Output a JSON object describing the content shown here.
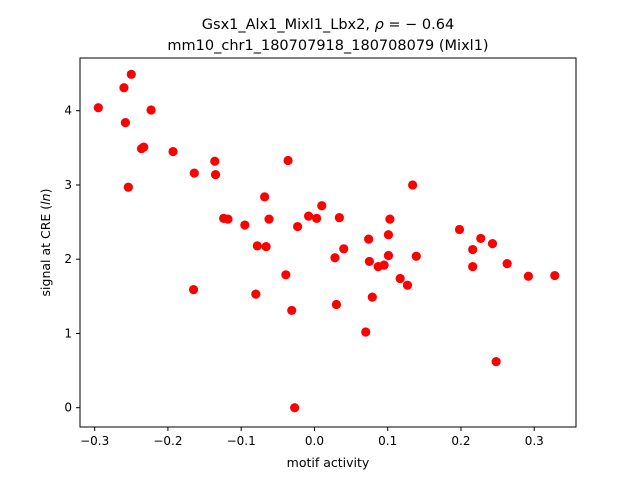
{
  "chart_data": {
    "type": "scatter",
    "title_line1_prefix": "Gsx1_Alx1_Mixl1_Lbx2, ",
    "title_line1_rho": "ρ",
    "title_line1_suffix": " = − 0.64",
    "title_line2": "mm10_chr1_180707918_180708079 (Mixl1)",
    "xlabel": "motif activity",
    "ylabel_prefix": "signal at CRE (",
    "ylabel_italic": "ln",
    "ylabel_suffix": ")",
    "xlim": [
      -0.32,
      0.357
    ],
    "ylim": [
      -0.26,
      4.71
    ],
    "xticks": [
      -0.3,
      -0.2,
      -0.1,
      0.0,
      0.1,
      0.2,
      0.3
    ],
    "xtick_labels": [
      "−0.3",
      "−0.2",
      "−0.1",
      "0.0",
      "0.1",
      "0.2",
      "0.3"
    ],
    "yticks": [
      0,
      1,
      2,
      3,
      4
    ],
    "ytick_labels": [
      "0",
      "1",
      "2",
      "3",
      "4"
    ],
    "grid": false,
    "marker_color": "#ff0000",
    "points": [
      {
        "x": -0.295,
        "y": 4.04
      },
      {
        "x": -0.25,
        "y": 4.49
      },
      {
        "x": -0.26,
        "y": 4.31
      },
      {
        "x": -0.258,
        "y": 3.84
      },
      {
        "x": -0.223,
        "y": 4.01
      },
      {
        "x": -0.236,
        "y": 3.49
      },
      {
        "x": -0.233,
        "y": 3.51
      },
      {
        "x": -0.193,
        "y": 3.45
      },
      {
        "x": -0.254,
        "y": 2.97
      },
      {
        "x": -0.164,
        "y": 3.16
      },
      {
        "x": -0.136,
        "y": 3.32
      },
      {
        "x": -0.135,
        "y": 3.14
      },
      {
        "x": -0.124,
        "y": 2.55
      },
      {
        "x": -0.118,
        "y": 2.54
      },
      {
        "x": -0.095,
        "y": 2.46
      },
      {
        "x": -0.068,
        "y": 2.84
      },
      {
        "x": -0.062,
        "y": 2.54
      },
      {
        "x": -0.036,
        "y": 3.33
      },
      {
        "x": -0.078,
        "y": 2.18
      },
      {
        "x": -0.066,
        "y": 2.17
      },
      {
        "x": -0.023,
        "y": 2.44
      },
      {
        "x": -0.008,
        "y": 2.58
      },
      {
        "x": 0.003,
        "y": 2.55
      },
      {
        "x": 0.01,
        "y": 2.72
      },
      {
        "x": 0.034,
        "y": 2.56
      },
      {
        "x": 0.04,
        "y": 2.14
      },
      {
        "x": 0.028,
        "y": 2.02
      },
      {
        "x": -0.165,
        "y": 1.59
      },
      {
        "x": -0.08,
        "y": 1.53
      },
      {
        "x": -0.039,
        "y": 1.79
      },
      {
        "x": -0.031,
        "y": 1.31
      },
      {
        "x": 0.03,
        "y": 1.39
      },
      {
        "x": -0.027,
        "y": 0.0
      },
      {
        "x": 0.074,
        "y": 2.27
      },
      {
        "x": 0.075,
        "y": 1.97
      },
      {
        "x": 0.087,
        "y": 1.9
      },
      {
        "x": 0.095,
        "y": 1.92
      },
      {
        "x": 0.101,
        "y": 2.05
      },
      {
        "x": 0.101,
        "y": 2.33
      },
      {
        "x": 0.103,
        "y": 2.54
      },
      {
        "x": 0.079,
        "y": 1.49
      },
      {
        "x": 0.07,
        "y": 1.02
      },
      {
        "x": 0.117,
        "y": 1.74
      },
      {
        "x": 0.127,
        "y": 1.65
      },
      {
        "x": 0.134,
        "y": 3.0
      },
      {
        "x": 0.139,
        "y": 2.04
      },
      {
        "x": 0.198,
        "y": 2.4
      },
      {
        "x": 0.216,
        "y": 2.13
      },
      {
        "x": 0.216,
        "y": 1.9
      },
      {
        "x": 0.227,
        "y": 2.28
      },
      {
        "x": 0.243,
        "y": 2.21
      },
      {
        "x": 0.263,
        "y": 1.94
      },
      {
        "x": 0.248,
        "y": 0.62
      },
      {
        "x": 0.292,
        "y": 1.77
      },
      {
        "x": 0.328,
        "y": 1.78
      }
    ]
  }
}
